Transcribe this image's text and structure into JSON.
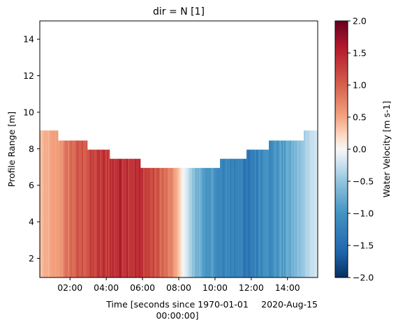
{
  "chart_data": {
    "type": "heatmap",
    "title": "dir = N [1]",
    "xlabel_line1": "Time [seconds since 1970-01-01",
    "xlabel_line2": "00:00:00]",
    "x_date_offset": "2020-Aug-15",
    "ylabel": "Profile Range [m]",
    "colorbar_label": "Water Velocity [m s-1]",
    "colormap": "RdBu_r",
    "x_range": [
      "00:20",
      "15:40"
    ],
    "ylim": [
      0.95,
      15
    ],
    "clim": [
      -2,
      2
    ],
    "x_ticks": [
      "02:00",
      "04:00",
      "06:00",
      "08:00",
      "10:00",
      "12:00",
      "14:00"
    ],
    "y_ticks": [
      "2",
      "4",
      "6",
      "8",
      "10",
      "12",
      "14"
    ],
    "colorbar_ticks": [
      "2.0",
      "1.5",
      "1.0",
      "0.5",
      "0.0",
      "−0.5",
      "−1.0",
      "−1.5",
      "−2.0"
    ],
    "profile_top": [
      {
        "from": "00:20",
        "to": "01:20",
        "max_range": 9.0
      },
      {
        "from": "01:20",
        "to": "02:55",
        "max_range": 8.45
      },
      {
        "from": "02:55",
        "to": "04:10",
        "max_range": 7.95
      },
      {
        "from": "04:10",
        "to": "05:55",
        "max_range": 7.45
      },
      {
        "from": "05:55",
        "to": "10:15",
        "max_range": 6.95
      },
      {
        "from": "10:15",
        "to": "11:45",
        "max_range": 7.45
      },
      {
        "from": "11:45",
        "to": "13:00",
        "max_range": 7.95
      },
      {
        "from": "13:00",
        "to": "14:55",
        "max_range": 8.45
      },
      {
        "from": "14:55",
        "to": "15:40",
        "max_range": 9.0
      }
    ],
    "velocity_profile": [
      {
        "time": "00:20",
        "velocity": 0.35
      },
      {
        "time": "01:20",
        "velocity": 0.55
      },
      {
        "time": "02:00",
        "velocity": 0.9
      },
      {
        "time": "03:00",
        "velocity": 1.15
      },
      {
        "time": "04:00",
        "velocity": 1.35
      },
      {
        "time": "05:00",
        "velocity": 1.5
      },
      {
        "time": "06:00",
        "velocity": 1.35
      },
      {
        "time": "07:00",
        "velocity": 1.0
      },
      {
        "time": "07:45",
        "velocity": 0.6
      },
      {
        "time": "08:15",
        "velocity": 0.0
      },
      {
        "time": "09:00",
        "velocity": -0.7
      },
      {
        "time": "10:00",
        "velocity": -1.05
      },
      {
        "time": "11:00",
        "velocity": -1.25
      },
      {
        "time": "12:00",
        "velocity": -1.3
      },
      {
        "time": "13:00",
        "velocity": -1.1
      },
      {
        "time": "14:00",
        "velocity": -0.8
      },
      {
        "time": "15:00",
        "velocity": -0.4
      },
      {
        "time": "15:40",
        "velocity": -0.15
      }
    ]
  }
}
